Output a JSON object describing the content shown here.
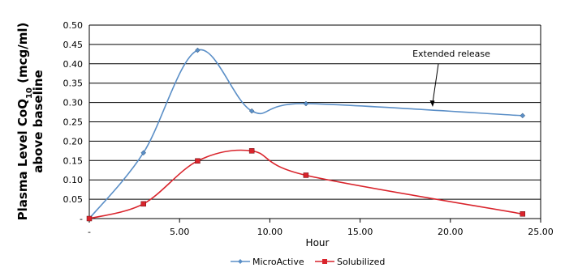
{
  "chart_data": {
    "type": "line",
    "xlabel": "Hour",
    "ylabel_line1_pre": "Plasma Level CoQ",
    "ylabel_sub": "10",
    "ylabel_line1_post": " (mcg/ml)",
    "ylabel_line2": "above baseline",
    "xlim": [
      0,
      25
    ],
    "ylim": [
      0,
      0.5
    ],
    "grid": true,
    "x_ticks": [
      0,
      5,
      10,
      15,
      20,
      25
    ],
    "x_tick_labels": [
      "-",
      "5.00",
      "10.00",
      "15.00",
      "20.00",
      "25.00"
    ],
    "y_ticks": [
      0,
      0.05,
      0.1,
      0.15,
      0.2,
      0.25,
      0.3,
      0.35,
      0.4,
      0.45,
      0.5
    ],
    "y_tick_labels": [
      "-",
      "0.05",
      "0.10",
      "0.15",
      "0.20",
      "0.25",
      "0.30",
      "0.35",
      "0.40",
      "0.45",
      "0.50"
    ],
    "legend_position": "bottom",
    "series": [
      {
        "name": "MicroActive",
        "color": "#5b8fc7",
        "marker": "diamond",
        "x": [
          0,
          3,
          6,
          9,
          12,
          24
        ],
        "y": [
          0,
          0.17,
          0.435,
          0.278,
          0.297,
          0.266
        ]
      },
      {
        "name": "Solubilized",
        "color": "#d9242c",
        "marker": "square",
        "x": [
          0,
          3,
          6,
          9,
          12,
          24
        ],
        "y": [
          0,
          0.038,
          0.149,
          0.175,
          0.112,
          0.012
        ]
      }
    ],
    "annotations": [
      {
        "text": "Extended release",
        "target_x": 18.9,
        "target_y": 0.28
      }
    ]
  }
}
